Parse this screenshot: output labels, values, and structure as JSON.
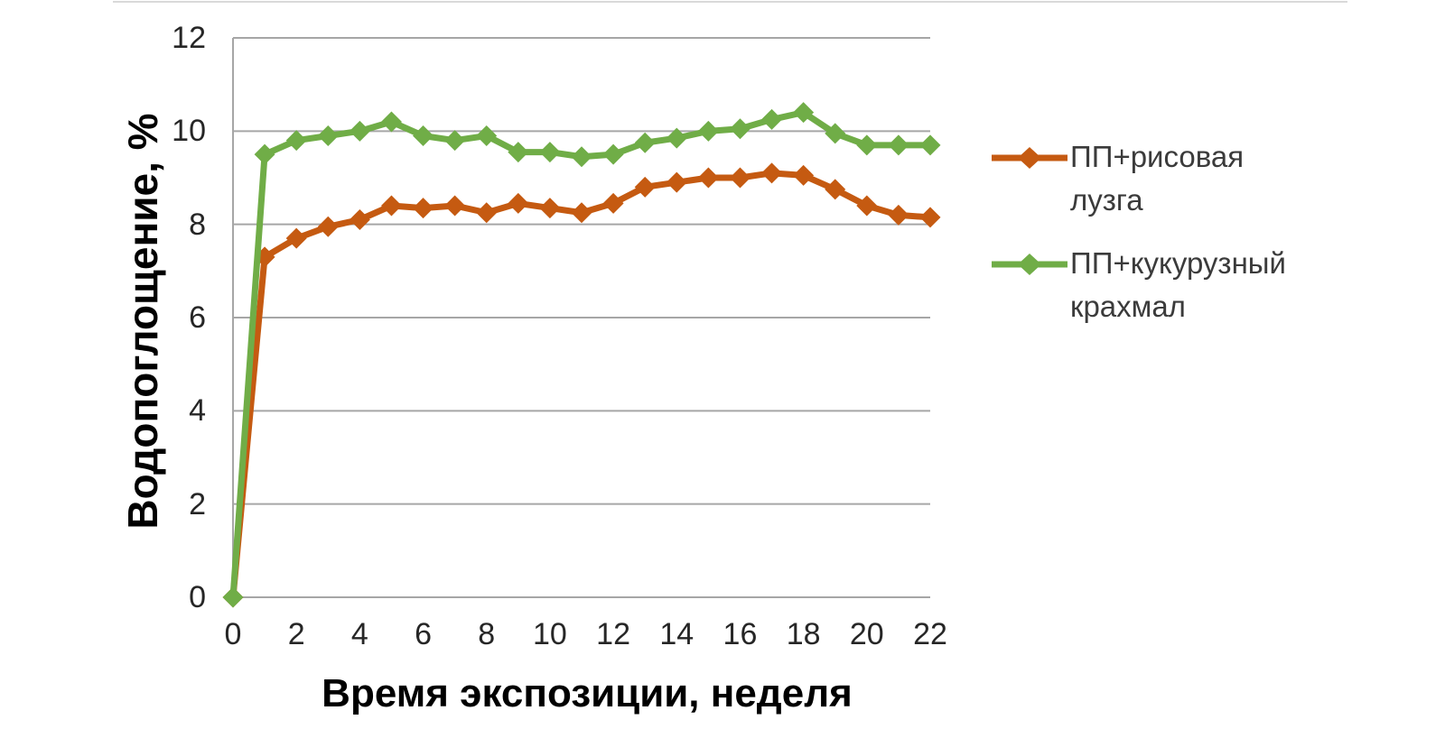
{
  "chart_data": {
    "type": "line",
    "title": "",
    "xlabel": "Время экспозиции, неделя",
    "ylabel": "Водопоглощение, %",
    "xlim": [
      0,
      22
    ],
    "ylim": [
      0,
      12
    ],
    "xticks": [
      0,
      2,
      4,
      6,
      8,
      10,
      12,
      14,
      16,
      18,
      20,
      22
    ],
    "yticks": [
      0,
      2,
      4,
      6,
      8,
      10,
      12
    ],
    "grid": true,
    "legend_position": "right",
    "x": [
      0,
      1,
      2,
      3,
      4,
      5,
      6,
      7,
      8,
      9,
      10,
      11,
      12,
      13,
      14,
      15,
      16,
      17,
      18,
      19,
      20,
      21,
      22
    ],
    "series": [
      {
        "id": "pp-rice-husk",
        "name": "ПП+рисовая лузга",
        "color": "#C55A11",
        "marker": "diamond",
        "values": [
          0,
          7.3,
          7.7,
          7.95,
          8.1,
          8.4,
          8.35,
          8.4,
          8.25,
          8.45,
          8.35,
          8.25,
          8.45,
          8.8,
          8.9,
          9.0,
          9.0,
          9.1,
          9.05,
          8.75,
          8.4,
          8.2,
          8.15
        ]
      },
      {
        "id": "pp-corn-starch",
        "name": "ПП+кукурузный крахмал",
        "color": "#70AD47",
        "marker": "diamond",
        "values": [
          0,
          9.5,
          9.8,
          9.9,
          10.0,
          10.2,
          9.9,
          9.8,
          9.9,
          9.55,
          9.55,
          9.45,
          9.5,
          9.75,
          9.85,
          10.0,
          10.05,
          10.25,
          10.4,
          9.95,
          9.7,
          9.7,
          9.7
        ]
      }
    ],
    "colors": {
      "gridline": "#A6A6A6",
      "axis": "#A6A6A6",
      "tick_text": "#262626",
      "title_text": "#000000",
      "legend_text": "#3B3B3B",
      "background": "#FFFFFF",
      "top_border": "#D9D9D9"
    }
  }
}
